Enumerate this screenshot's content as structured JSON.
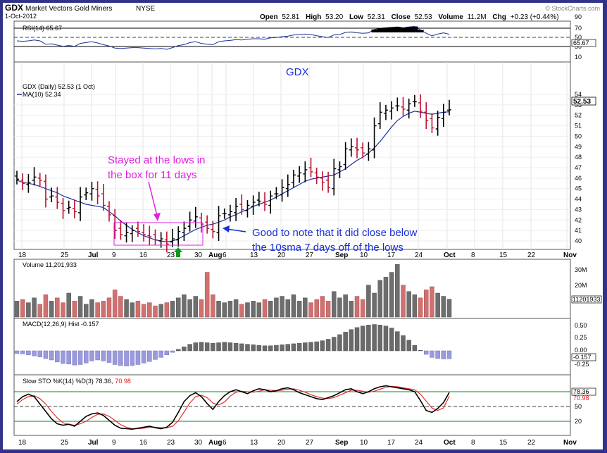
{
  "header": {
    "symbol": "GDX",
    "name": "Market Vectors Gold Miners",
    "exchange": "NYSE",
    "date": "1-Oct-2012",
    "open_label": "Open",
    "open": "52.81",
    "high_label": "High",
    "high": "53.20",
    "low_label": "Low",
    "low": "52.31",
    "close_label": "Close",
    "close": "52.53",
    "volume_label": "Volume",
    "volume": "11.2M",
    "chg_label": "Chg",
    "chg": "+0.23 (+0.44%)",
    "brand": "© StockCharts.com"
  },
  "rsi": {
    "label": "RSI(14) 65.67",
    "value_box": "65.67",
    "ticks": [
      "90",
      "70",
      "50",
      "30",
      "10"
    ],
    "title": "GDX"
  },
  "price": {
    "legend_main": "GDX (Daily) 52.53 (1 Oct)",
    "legend_ma": "MA(10) 52.34",
    "last_box": "52.53",
    "ticks": [
      "54",
      "53",
      "52",
      "51",
      "50",
      "49",
      "48",
      "47",
      "46",
      "45",
      "44",
      "43",
      "42",
      "41",
      "40"
    ]
  },
  "annotations": {
    "box_note_line1": "Stayed at the lows in",
    "box_note_line2": "the box for 11 days",
    "sma_note_line1": "Good to note that it did close below",
    "sma_note_line2": "the 10sma 7 days off of the lows"
  },
  "volume": {
    "label": "Volume 11,201,933",
    "ticks": [
      "30M",
      "20M",
      "10M"
    ],
    "value_box": "11201933"
  },
  "macd": {
    "label": "MACD(12,26,9) Hist -0.157",
    "ticks": [
      "0.50",
      "0.25",
      "0.00",
      "-0.25"
    ],
    "value_box": "-0.157"
  },
  "sto": {
    "label": "Slow STO %K(14) %D(3) 78.36,",
    "label_d": "70.98",
    "ticks": [
      "80",
      "50",
      "20"
    ],
    "k_box": "78.36",
    "d_box": "70.98"
  },
  "x_axis_labels": [
    "18",
    "25",
    "Jul",
    "9",
    "16",
    "23",
    "30",
    "Aug",
    "6",
    "13",
    "20",
    "27",
    "Sep",
    "10",
    "17",
    "24",
    "Oct",
    "8",
    "15",
    "22",
    "Nov"
  ],
  "chart_data": {
    "type": "candlestick",
    "title": "GDX Market Vectors Gold Miners NYSE",
    "date": "1-Oct-2012",
    "ylim": [
      39,
      54.5
    ],
    "dates": [
      "Jun 14",
      "Jun 15",
      "Jun 18",
      "Jun 19",
      "Jun 20",
      "Jun 21",
      "Jun 22",
      "Jun 25",
      "Jun 26",
      "Jun 27",
      "Jun 28",
      "Jun 29",
      "Jul 2",
      "Jul 3",
      "Jul 5",
      "Jul 6",
      "Jul 9",
      "Jul 10",
      "Jul 11",
      "Jul 12",
      "Jul 13",
      "Jul 16",
      "Jul 17",
      "Jul 18",
      "Jul 19",
      "Jul 20",
      "Jul 23",
      "Jul 24",
      "Jul 25",
      "Jul 26",
      "Jul 27",
      "Jul 30",
      "Jul 31",
      "Aug 1",
      "Aug 2",
      "Aug 3",
      "Aug 6",
      "Aug 7",
      "Aug 8",
      "Aug 9",
      "Aug 10",
      "Aug 13",
      "Aug 14",
      "Aug 15",
      "Aug 16",
      "Aug 17",
      "Aug 20",
      "Aug 21",
      "Aug 22",
      "Aug 23",
      "Aug 24",
      "Aug 27",
      "Aug 28",
      "Aug 29",
      "Aug 30",
      "Aug 31",
      "Sep 4",
      "Sep 5",
      "Sep 6",
      "Sep 7",
      "Sep 10",
      "Sep 11",
      "Sep 12",
      "Sep 13",
      "Sep 14",
      "Sep 17",
      "Sep 18",
      "Sep 19",
      "Sep 20",
      "Sep 21",
      "Sep 24",
      "Sep 25",
      "Sep 26",
      "Sep 27",
      "Sep 28",
      "Oct 1"
    ],
    "close": [
      45.9,
      45.5,
      45.6,
      46.1,
      45.8,
      44.0,
      44.3,
      43.7,
      42.9,
      43.2,
      42.8,
      44.2,
      44.6,
      45.0,
      44.3,
      43.4,
      42.5,
      41.0,
      40.6,
      40.8,
      41.0,
      40.9,
      40.6,
      40.4,
      40.1,
      40.2,
      39.7,
      40.2,
      40.9,
      41.2,
      42.0,
      42.3,
      41.6,
      41.2,
      40.9,
      42.4,
      42.6,
      42.8,
      43.3,
      43.0,
      43.4,
      43.7,
      43.8,
      43.5,
      44.3,
      44.5,
      45.1,
      45.4,
      46.3,
      46.5,
      46.8,
      46.6,
      46.1,
      45.6,
      45.1,
      46.9,
      47.1,
      48.8,
      49.0,
      48.7,
      48.4,
      48.8,
      51.0,
      52.3,
      52.5,
      52.7,
      52.9,
      52.6,
      53.1,
      53.3,
      52.4,
      51.5,
      50.8,
      51.8,
      52.3,
      52.53
    ],
    "ma10": [
      45.8,
      45.6,
      45.5,
      45.4,
      45.2,
      45.0,
      44.8,
      44.6,
      44.3,
      44.1,
      43.9,
      43.7,
      43.5,
      43.4,
      43.3,
      43.2,
      42.8,
      42.4,
      41.9,
      41.5,
      41.1,
      40.8,
      40.5,
      40.3,
      40.1,
      40.0,
      39.9,
      40.0,
      40.2,
      40.5,
      40.8,
      41.1,
      41.3,
      41.5,
      41.6,
      41.8,
      42.0,
      42.3,
      42.5,
      42.8,
      43.0,
      43.3,
      43.5,
      43.7,
      43.9,
      44.2,
      44.5,
      44.8,
      45.1,
      45.4,
      45.7,
      45.9,
      46.0,
      46.1,
      46.2,
      46.3,
      46.6,
      46.9,
      47.3,
      47.7,
      48.0,
      48.4,
      48.9,
      49.5,
      50.2,
      50.9,
      51.5,
      51.9,
      52.2,
      52.4,
      52.3,
      52.2,
      52.1,
      52.2,
      52.3,
      52.34
    ],
    "volume_millions": [
      10,
      11,
      9,
      12,
      8,
      14,
      10,
      12,
      9,
      15,
      10,
      13,
      8,
      11,
      9,
      10,
      12,
      17,
      13,
      11,
      9,
      10,
      8,
      9,
      7,
      8,
      9,
      10,
      12,
      14,
      11,
      13,
      11,
      28,
      14,
      10,
      9,
      10,
      11,
      8,
      9,
      10,
      9,
      11,
      10,
      12,
      13,
      11,
      14,
      10,
      12,
      9,
      11,
      13,
      10,
      16,
      12,
      14,
      10,
      13,
      11,
      20,
      15,
      23,
      25,
      28,
      33,
      20,
      16,
      14,
      12,
      17,
      19,
      15,
      13,
      11.2
    ],
    "macd_hist": [
      -0.05,
      -0.06,
      -0.08,
      -0.1,
      -0.12,
      -0.15,
      -0.18,
      -0.22,
      -0.25,
      -0.26,
      -0.28,
      -0.27,
      -0.24,
      -0.2,
      -0.18,
      -0.2,
      -0.23,
      -0.27,
      -0.29,
      -0.3,
      -0.29,
      -0.27,
      -0.24,
      -0.21,
      -0.17,
      -0.13,
      -0.08,
      -0.03,
      0.03,
      0.08,
      0.13,
      0.16,
      0.17,
      0.16,
      0.15,
      0.16,
      0.17,
      0.16,
      0.15,
      0.14,
      0.13,
      0.12,
      0.11,
      0.1,
      0.1,
      0.11,
      0.12,
      0.13,
      0.14,
      0.15,
      0.16,
      0.17,
      0.18,
      0.2,
      0.23,
      0.27,
      0.32,
      0.37,
      0.42,
      0.46,
      0.49,
      0.51,
      0.52,
      0.51,
      0.49,
      0.45,
      0.38,
      0.3,
      0.21,
      0.11,
      0.01,
      -0.07,
      -0.13,
      -0.15,
      -0.16,
      -0.157
    ],
    "sto_k": [
      60,
      70,
      75,
      70,
      55,
      40,
      25,
      15,
      12,
      14,
      10,
      20,
      30,
      35,
      37,
      32,
      22,
      12,
      6,
      5,
      4,
      6,
      8,
      10,
      7,
      5,
      8,
      18,
      38,
      60,
      72,
      78,
      70,
      56,
      44,
      60,
      72,
      80,
      84,
      80,
      76,
      82,
      86,
      84,
      80,
      82,
      86,
      88,
      84,
      78,
      74,
      70,
      66,
      64,
      68,
      72,
      78,
      84,
      86,
      80,
      76,
      80,
      86,
      90,
      92,
      90,
      88,
      86,
      84,
      80,
      62,
      42,
      38,
      46,
      58,
      78.36
    ],
    "sto_d": [
      55,
      64,
      70,
      72,
      66,
      55,
      40,
      27,
      17,
      14,
      12,
      15,
      20,
      28,
      34,
      35,
      30,
      22,
      13,
      8,
      5,
      5,
      6,
      8,
      8,
      7,
      7,
      10,
      21,
      39,
      57,
      70,
      73,
      68,
      57,
      53,
      59,
      71,
      79,
      81,
      80,
      79,
      81,
      84,
      83,
      82,
      83,
      85,
      86,
      83,
      79,
      74,
      70,
      67,
      66,
      68,
      73,
      78,
      83,
      83,
      81,
      79,
      81,
      85,
      89,
      91,
      90,
      88,
      86,
      84,
      75,
      61,
      47,
      42,
      47,
      70.98
    ],
    "rsi": [
      50,
      49,
      50,
      52,
      50,
      42,
      43,
      40,
      37,
      39,
      37,
      44,
      46,
      48,
      45,
      41,
      38,
      33,
      32,
      33,
      34,
      34,
      33,
      32,
      31,
      32,
      30,
      34,
      39,
      41,
      46,
      48,
      44,
      42,
      41,
      48,
      50,
      51,
      53,
      52,
      54,
      55,
      55,
      54,
      57,
      58,
      60,
      61,
      64,
      65,
      66,
      65,
      62,
      60,
      58,
      64,
      65,
      70,
      71,
      69,
      68,
      69,
      77,
      80,
      81,
      82,
      83,
      81,
      83,
      84,
      76,
      68,
      62,
      66,
      69,
      65.67
    ]
  }
}
